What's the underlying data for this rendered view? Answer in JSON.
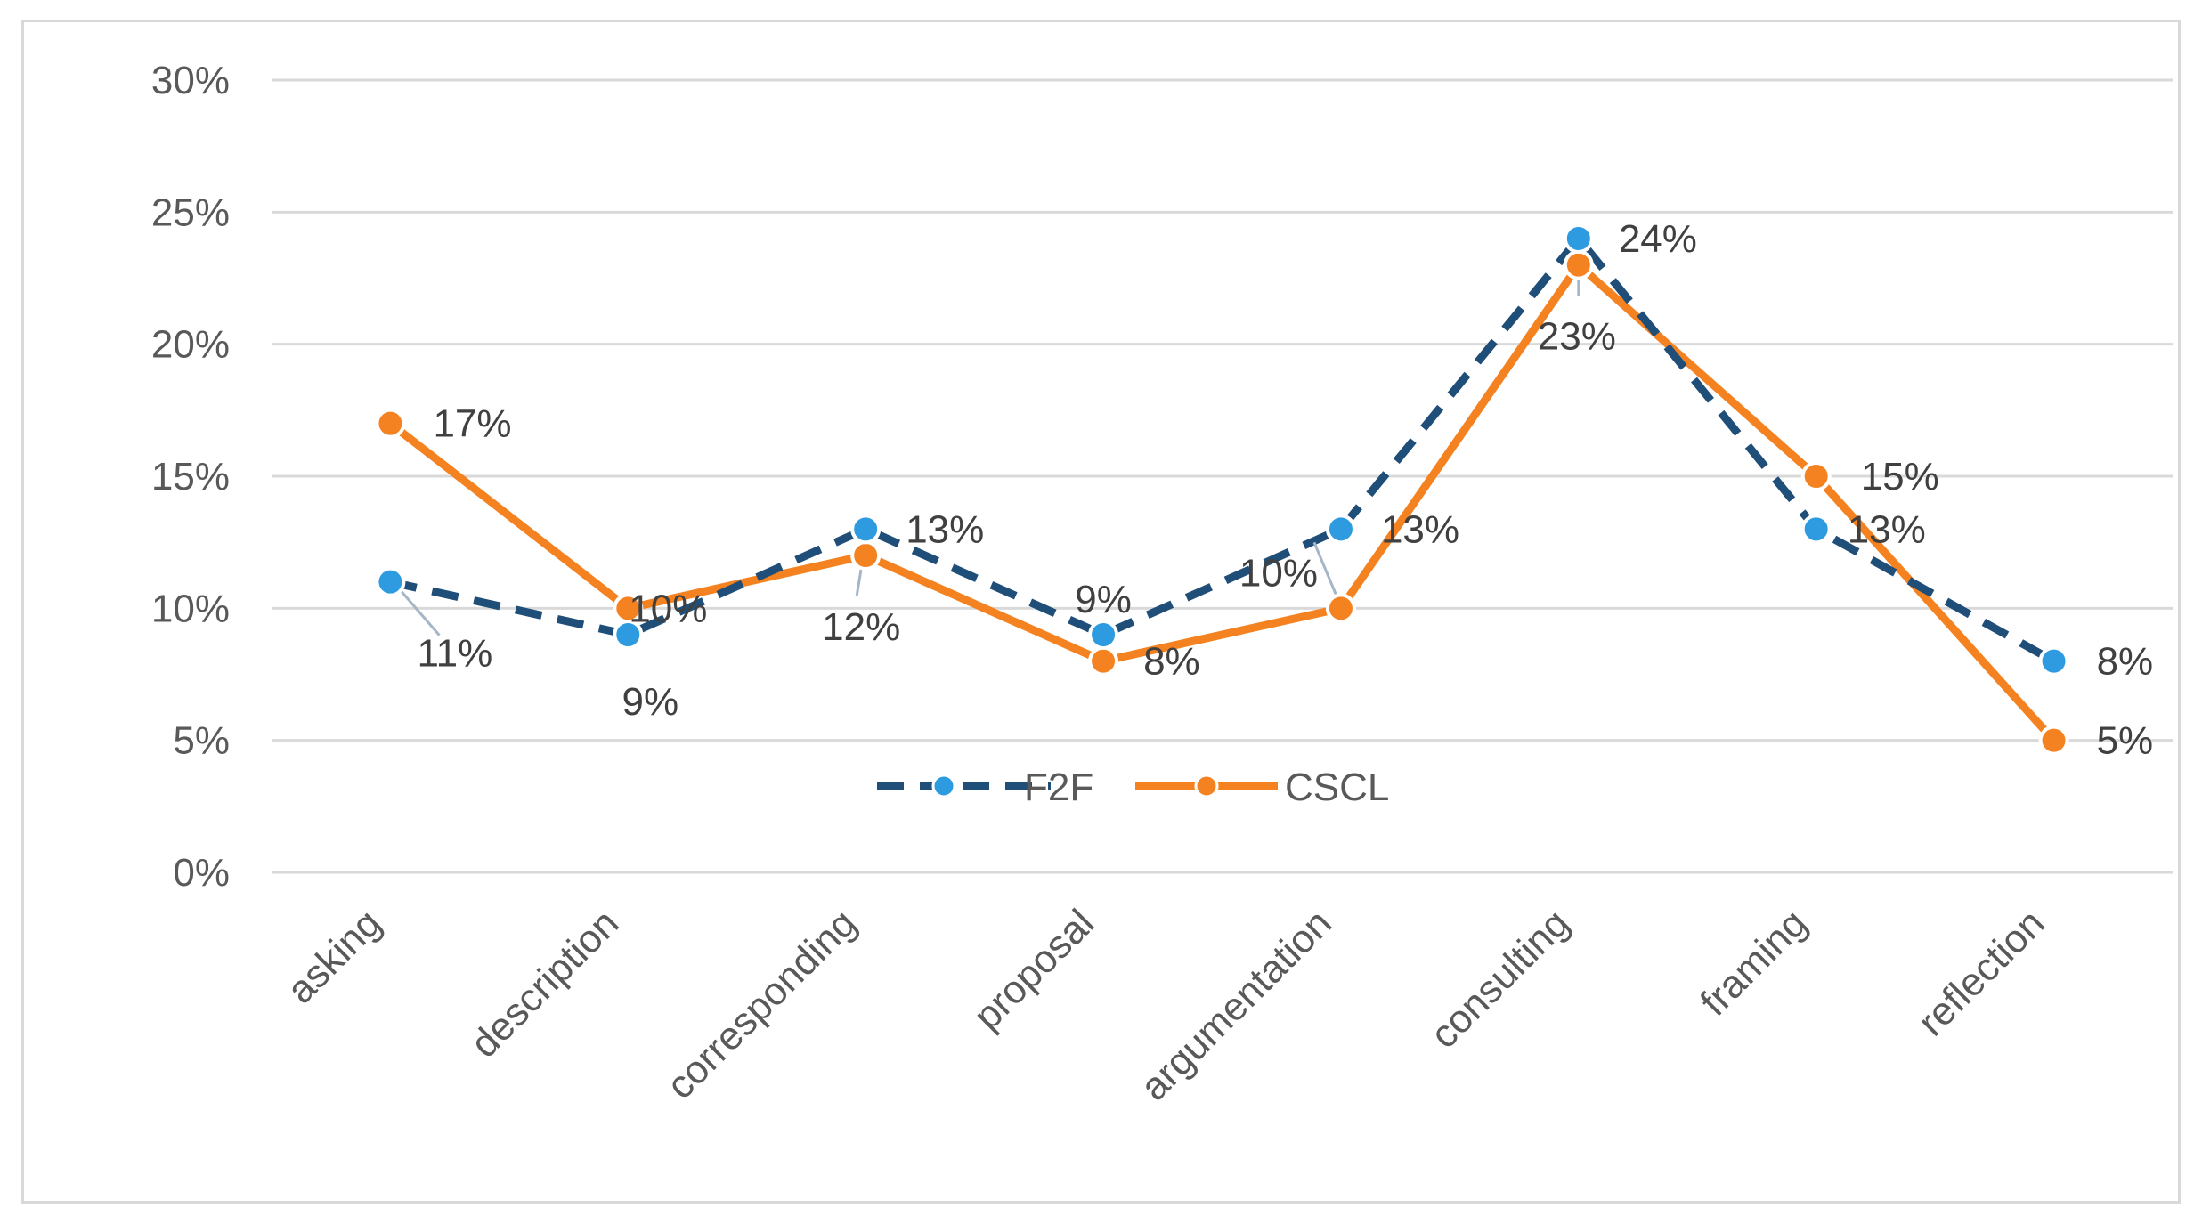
{
  "chart_data": {
    "type": "line",
    "title": "",
    "xlabel": "",
    "ylabel": "",
    "categories": [
      "asking",
      "description",
      "corresponding",
      "proposal",
      "argumentation",
      "consulting",
      "framing",
      "reflection"
    ],
    "ylim": [
      0,
      30
    ],
    "yticks": [
      0,
      5,
      10,
      15,
      20,
      25,
      30
    ],
    "ytick_labels": [
      "0%",
      "5%",
      "10%",
      "15%",
      "20%",
      "25%",
      "30%"
    ],
    "grid": true,
    "legend_position": "bottom-center",
    "series": [
      {
        "name": "F2F",
        "color": "#1f4e79",
        "marker_color": "#2e9be0",
        "line_style": "dashed",
        "values": [
          11,
          9,
          13,
          9,
          13,
          24,
          13,
          8
        ],
        "labels": [
          "11%",
          "9%",
          "13%",
          "9%",
          "13%",
          "24%",
          "13%",
          "8%"
        ]
      },
      {
        "name": "CSCL",
        "color": "#f58220",
        "marker_color": "#f58220",
        "line_style": "solid",
        "values": [
          17,
          10,
          12,
          8,
          10,
          23,
          15,
          5
        ],
        "labels": [
          "17%",
          "10%",
          "12%",
          "8%",
          "10%",
          "23%",
          "15%",
          "5%"
        ]
      }
    ]
  }
}
